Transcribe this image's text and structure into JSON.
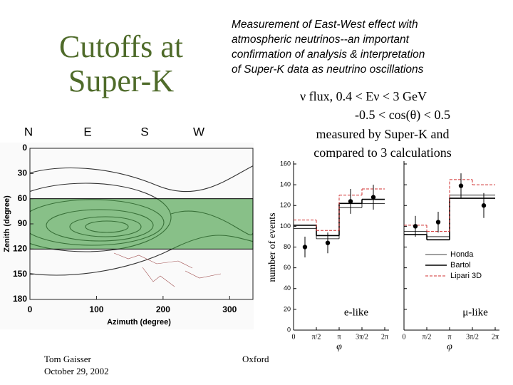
{
  "slide": {
    "title": [
      "Cutoffs at",
      "Super-K"
    ],
    "directions": [
      "N",
      "E",
      "S",
      "W"
    ],
    "description": [
      "Measurement of East-West effect with",
      "atmospheric neutrinos--an important",
      "confirmation of analysis & interpretation",
      "of Super-K data as neutrino oscillations"
    ],
    "caption": [
      "ν flux,   0.4 < Eν < 3 GeV",
      "-0.5 < cos(θ) < 0.5",
      "measured by Super-K and",
      "compared to 3 calculations"
    ],
    "author": [
      "Tom Gaisser",
      "October 29, 2002"
    ],
    "place": "Oxford"
  },
  "chart_data": [
    {
      "type": "contour",
      "xlabel": "Azimuth (degree)",
      "ylabel": "Zenith (degree)",
      "xlim": [
        0,
        335
      ],
      "ylim": [
        0,
        180
      ],
      "y_inverted": true,
      "xticks": [
        0,
        100,
        200,
        300
      ],
      "yticks": [
        0,
        30,
        60,
        90,
        120,
        150,
        180
      ],
      "band": [
        60,
        120
      ],
      "band_color": "#3c9a3c"
    },
    {
      "type": "histogram",
      "ylabel": "number of events",
      "ylim": [
        0,
        160
      ],
      "yticks": [
        0,
        20,
        40,
        60,
        80,
        100,
        120,
        140,
        160
      ],
      "series": [
        {
          "name": "Honda",
          "color": "#000000",
          "values": [
            [
              98,
              88,
              118,
              122
            ],
            [
              95,
              90,
              130,
              130
            ]
          ]
        },
        {
          "name": "Bartol",
          "color": "#000000",
          "values": [
            [
              101,
              91,
              122,
              126
            ],
            [
              92,
              87,
              127,
              127
            ]
          ]
        },
        {
          "name": "Lipari 3D",
          "color": "#d03030",
          "values": [
            [
              106,
              96,
              130,
              136
            ],
            [
              101,
              95,
              145,
              140
            ]
          ]
        }
      ],
      "panels": [
        {
          "label": "e-like",
          "xlabel": "φ",
          "xlim": [
            0,
            6.2832
          ],
          "xticks": [
            0,
            {
              "value": 1.5708,
              "label": "π/2"
            },
            {
              "value": 3.1416,
              "label": "π"
            },
            {
              "value": 4.7124,
              "label": "3π/2"
            },
            {
              "value": 6.2832,
              "label": "2π"
            }
          ],
          "bins": [
            0,
            1.5708,
            3.1416,
            4.7124,
            6.2832
          ],
          "data_x": [
            0.785,
            2.356,
            3.927,
            5.498
          ],
          "data_values": [
            80,
            84,
            124,
            128
          ],
          "data_errors": [
            10,
            10,
            12,
            12
          ]
        },
        {
          "label": "μ-like",
          "xlabel": "φ",
          "xlim": [
            0,
            6.2832
          ],
          "xticks": [
            0,
            {
              "value": 1.5708,
              "label": "π/2"
            },
            {
              "value": 3.1416,
              "label": "π"
            },
            {
              "value": 4.7124,
              "label": "3π/2"
            },
            {
              "value": 6.2832,
              "label": "2π"
            }
          ],
          "bins": [
            0,
            1.5708,
            3.1416,
            4.7124,
            6.2832
          ],
          "data_x": [
            0.785,
            2.356,
            3.927,
            5.498
          ],
          "data_values": [
            100,
            104,
            139,
            120
          ],
          "data_errors": [
            10,
            10,
            12,
            12
          ]
        }
      ]
    }
  ]
}
